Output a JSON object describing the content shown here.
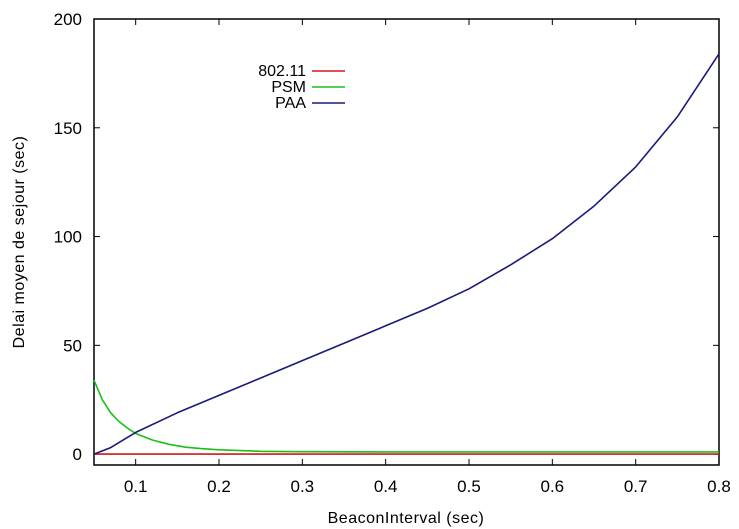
{
  "chart_data": {
    "type": "line",
    "title": "",
    "xlabel": "BeaconInterval (sec)",
    "ylabel": "Delai moyen de sejour (sec)",
    "xlim": [
      0.05,
      0.8
    ],
    "ylim": [
      -5,
      200
    ],
    "xticks": [
      0.1,
      0.2,
      0.3,
      0.4,
      0.5,
      0.6,
      0.7,
      0.8
    ],
    "xtick_labels": [
      "0.1",
      "0.2",
      "0.3",
      "0.4",
      "0.5",
      "0.6",
      "0.7",
      "0.8"
    ],
    "yticks": [
      0,
      50,
      100,
      150,
      200
    ],
    "ytick_labels": [
      "0",
      "50",
      "100",
      "150",
      "200"
    ],
    "grid": false,
    "legend_position": "top-left",
    "series": [
      {
        "name": "802.11",
        "color": "#d01818",
        "x": [
          0.05,
          0.1,
          0.2,
          0.3,
          0.4,
          0.5,
          0.6,
          0.7,
          0.8
        ],
        "values": [
          0,
          0,
          0,
          0,
          0,
          0,
          0,
          0,
          0
        ]
      },
      {
        "name": "PSM",
        "color": "#18c018",
        "x": [
          0.05,
          0.06,
          0.07,
          0.08,
          0.09,
          0.1,
          0.12,
          0.14,
          0.16,
          0.18,
          0.2,
          0.25,
          0.3,
          0.4,
          0.5,
          0.6,
          0.7,
          0.8
        ],
        "values": [
          34,
          25,
          19,
          15,
          12,
          9.5,
          6.5,
          4.5,
          3.2,
          2.5,
          2,
          1.3,
          1.1,
          1,
          1,
          1,
          1,
          1
        ]
      },
      {
        "name": "PAA",
        "color": "#1a1a7a",
        "x": [
          0.05,
          0.07,
          0.1,
          0.15,
          0.2,
          0.25,
          0.3,
          0.35,
          0.4,
          0.45,
          0.5,
          0.55,
          0.6,
          0.65,
          0.7,
          0.75,
          0.8
        ],
        "values": [
          0,
          3,
          10,
          19,
          27,
          35,
          43,
          51,
          59,
          67,
          76,
          87,
          99,
          114,
          132,
          155,
          184
        ]
      }
    ]
  }
}
